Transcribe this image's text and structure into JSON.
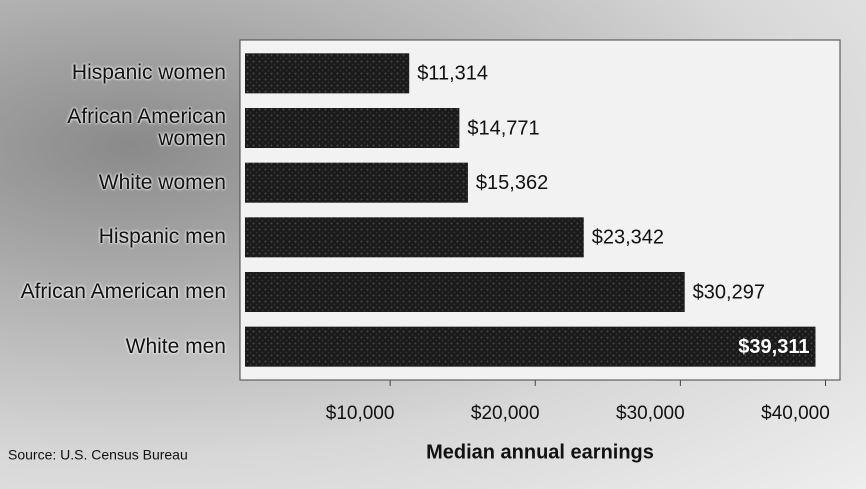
{
  "chart_data": {
    "type": "bar",
    "orientation": "horizontal",
    "categories": [
      "Hispanic women",
      "African American women",
      "White women",
      "Hispanic men",
      "African American men",
      "White men"
    ],
    "values": [
      11314,
      14771,
      15362,
      23342,
      30297,
      39311
    ],
    "value_labels": [
      "$11,314",
      "$14,771",
      "$15,362",
      "$23,342",
      "$30,297",
      "$39,311"
    ],
    "color": "#1a1a1a",
    "xlabel": "Median annual earnings",
    "xlim": [
      0,
      41000
    ],
    "xticks": [
      {
        "value": 10000,
        "label": "$10,000"
      },
      {
        "value": 20000,
        "label": "$20,000"
      },
      {
        "value": 30000,
        "label": "$30,000"
      },
      {
        "value": 40000,
        "label": "$40,000"
      }
    ],
    "source": "Source: U.S. Census Bureau"
  }
}
